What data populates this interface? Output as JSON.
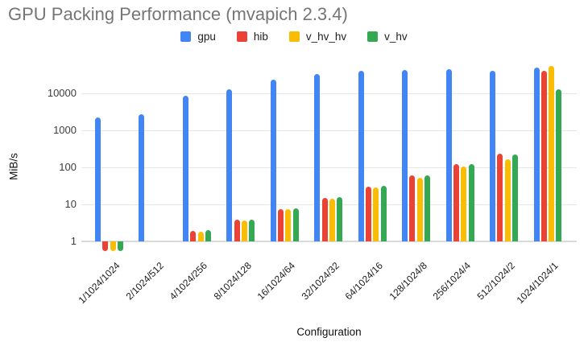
{
  "title": "GPU Packing Performance (mvapich 2.3.4)",
  "colors": {
    "gpu": "#4285F4",
    "hib": "#EA4335",
    "v_hv_hv": "#FBBC04",
    "v_hv": "#34A853",
    "title_text": "#757575",
    "gridline": "#e6e6e6"
  },
  "chart_data": {
    "type": "bar",
    "title": "GPU Packing Performance (mvapich 2.3.4)",
    "xlabel": "Configuration",
    "ylabel": "MiB/s",
    "y_scale": "log",
    "y_ticks": [
      1,
      10,
      100,
      1000,
      10000
    ],
    "y_baseline": 1,
    "ylim": [
      0.5,
      60000
    ],
    "grid": true,
    "legend_position": "top",
    "categories": [
      "1/1024/1024",
      "2/1024/512",
      "4/1024/256",
      "8/1024/128",
      "16/1024/64",
      "32/1024/32",
      "64/1024/16",
      "128/1024/8",
      "256/1024/4",
      "512/1024/2",
      "1024/1024/1"
    ],
    "series": [
      {
        "name": "gpu",
        "color": "#4285F4",
        "values": [
          2200,
          2700,
          8500,
          12800,
          24000,
          34000,
          41000,
          43500,
          44000,
          40000,
          50000
        ]
      },
      {
        "name": "hib",
        "color": "#EA4335",
        "values": [
          0.55,
          null,
          1.9,
          3.8,
          7.5,
          15,
          30,
          60,
          120,
          230,
          40000
        ]
      },
      {
        "name": "v_hv_hv",
        "color": "#FBBC04",
        "values": [
          0.55,
          null,
          1.85,
          3.7,
          7.3,
          14,
          28,
          52,
          105,
          165,
          54000
        ]
      },
      {
        "name": "v_hv",
        "color": "#34A853",
        "values": [
          0.55,
          null,
          2.0,
          3.9,
          7.7,
          15.5,
          31,
          60,
          125,
          225,
          13000
        ]
      }
    ]
  }
}
